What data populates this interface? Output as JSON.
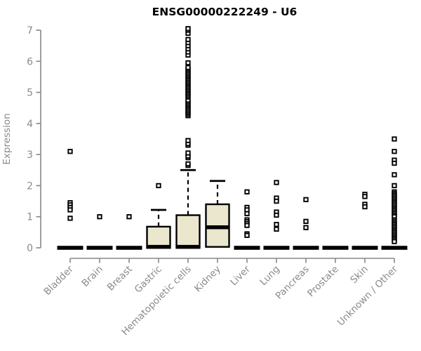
{
  "chart_data": {
    "type": "boxplot",
    "title": "ENSG00000222249 - U6",
    "xlabel": "",
    "ylabel": "Expression",
    "ylim": [
      0,
      7
    ],
    "yticks": [
      0,
      1,
      2,
      3,
      4,
      5,
      6,
      7
    ],
    "grid": false,
    "legend": "none",
    "categories": [
      "Bladder",
      "Brain",
      "Breast",
      "Gastric",
      "Hematopoietic cells",
      "Kidney",
      "Liver",
      "Lung",
      "Pancreas",
      "Prostate",
      "Skin",
      "Unknown / Other"
    ],
    "series": [
      {
        "name": "Bladder",
        "q1": 0,
        "median": 0.02,
        "q3": 0,
        "whisker_low": 0,
        "whisker_high": 0,
        "outliers": [
          3.1,
          1.45,
          1.38,
          1.3,
          1.22,
          0.95
        ]
      },
      {
        "name": "Brain",
        "q1": 0,
        "median": 0.02,
        "q3": 0,
        "whisker_low": 0,
        "whisker_high": 0,
        "outliers": [
          1.0
        ]
      },
      {
        "name": "Breast",
        "q1": 0,
        "median": 0.02,
        "q3": 0,
        "whisker_low": 0,
        "whisker_high": 0,
        "outliers": [
          1.0
        ]
      },
      {
        "name": "Gastric",
        "q1": 0,
        "median": 0.03,
        "q3": 0.68,
        "whisker_low": 0,
        "whisker_high": 1.22,
        "outliers": [
          2.0
        ]
      },
      {
        "name": "Hematopoietic cells",
        "q1": 0,
        "median": 0.03,
        "q3": 1.05,
        "whisker_low": 0,
        "whisker_high": 2.5,
        "outliers": [
          2.65,
          2.7,
          2.9,
          2.95,
          3.05,
          3.3,
          3.35,
          3.45,
          4.25,
          4.3,
          4.35,
          4.4,
          4.45,
          4.5,
          4.55,
          4.6,
          4.65,
          4.7,
          4.75,
          4.85,
          4.9,
          4.95,
          5.0,
          5.05,
          5.1,
          5.15,
          5.2,
          5.25,
          5.3,
          5.35,
          5.4,
          5.45,
          5.5,
          5.55,
          5.6,
          5.65,
          5.7,
          5.75,
          5.8,
          5.95,
          6.2,
          6.3,
          6.4,
          6.5,
          6.6,
          6.7,
          6.9,
          7.0,
          7.05
        ]
      },
      {
        "name": "Kidney",
        "q1": 0.03,
        "median": 0.66,
        "q3": 1.4,
        "whisker_low": 0.03,
        "whisker_high": 2.15,
        "outliers": []
      },
      {
        "name": "Liver",
        "q1": 0,
        "median": 0.02,
        "q3": 0,
        "whisker_low": 0,
        "whisker_high": 0,
        "outliers": [
          1.8,
          1.3,
          1.22,
          1.1,
          0.9,
          0.84,
          0.78,
          0.72,
          0.45,
          0.4
        ]
      },
      {
        "name": "Lung",
        "q1": 0,
        "median": 0.02,
        "q3": 0,
        "whisker_low": 0,
        "whisker_high": 0,
        "outliers": [
          2.1,
          1.6,
          1.5,
          1.15,
          1.05,
          0.75,
          0.6
        ]
      },
      {
        "name": "Pancreas",
        "q1": 0,
        "median": 0.02,
        "q3": 0,
        "whisker_low": 0,
        "whisker_high": 0,
        "outliers": [
          1.55,
          0.85,
          0.65
        ]
      },
      {
        "name": "Prostate",
        "q1": 0,
        "median": 0.02,
        "q3": 0,
        "whisker_low": 0,
        "whisker_high": 0,
        "outliers": []
      },
      {
        "name": "Skin",
        "q1": 0,
        "median": 0.02,
        "q3": 0,
        "whisker_low": 0,
        "whisker_high": 0,
        "outliers": [
          1.72,
          1.65,
          1.4,
          1.32
        ]
      },
      {
        "name": "Unknown / Other",
        "q1": 0,
        "median": 0.02,
        "q3": 0,
        "whisker_low": 0,
        "whisker_high": 0,
        "outliers": [
          3.5,
          3.1,
          2.82,
          2.72,
          2.35,
          2.0,
          1.8,
          1.75,
          1.7,
          1.65,
          1.6,
          1.55,
          1.5,
          1.45,
          1.4,
          1.35,
          1.3,
          1.25,
          1.2,
          1.15,
          1.1,
          1.05,
          1.0,
          0.9,
          0.85,
          0.8,
          0.75,
          0.7,
          0.65,
          0.6,
          0.55,
          0.5,
          0.45,
          0.4,
          0.35,
          0.3,
          0.25,
          0.2
        ]
      }
    ]
  },
  "colors": {
    "background": "#ffffff",
    "box_fill": "#EBE7CE",
    "box_stroke": "#000000",
    "axis": "#878787",
    "text_gray": "#8a8a8a",
    "title_color": "#000000"
  }
}
